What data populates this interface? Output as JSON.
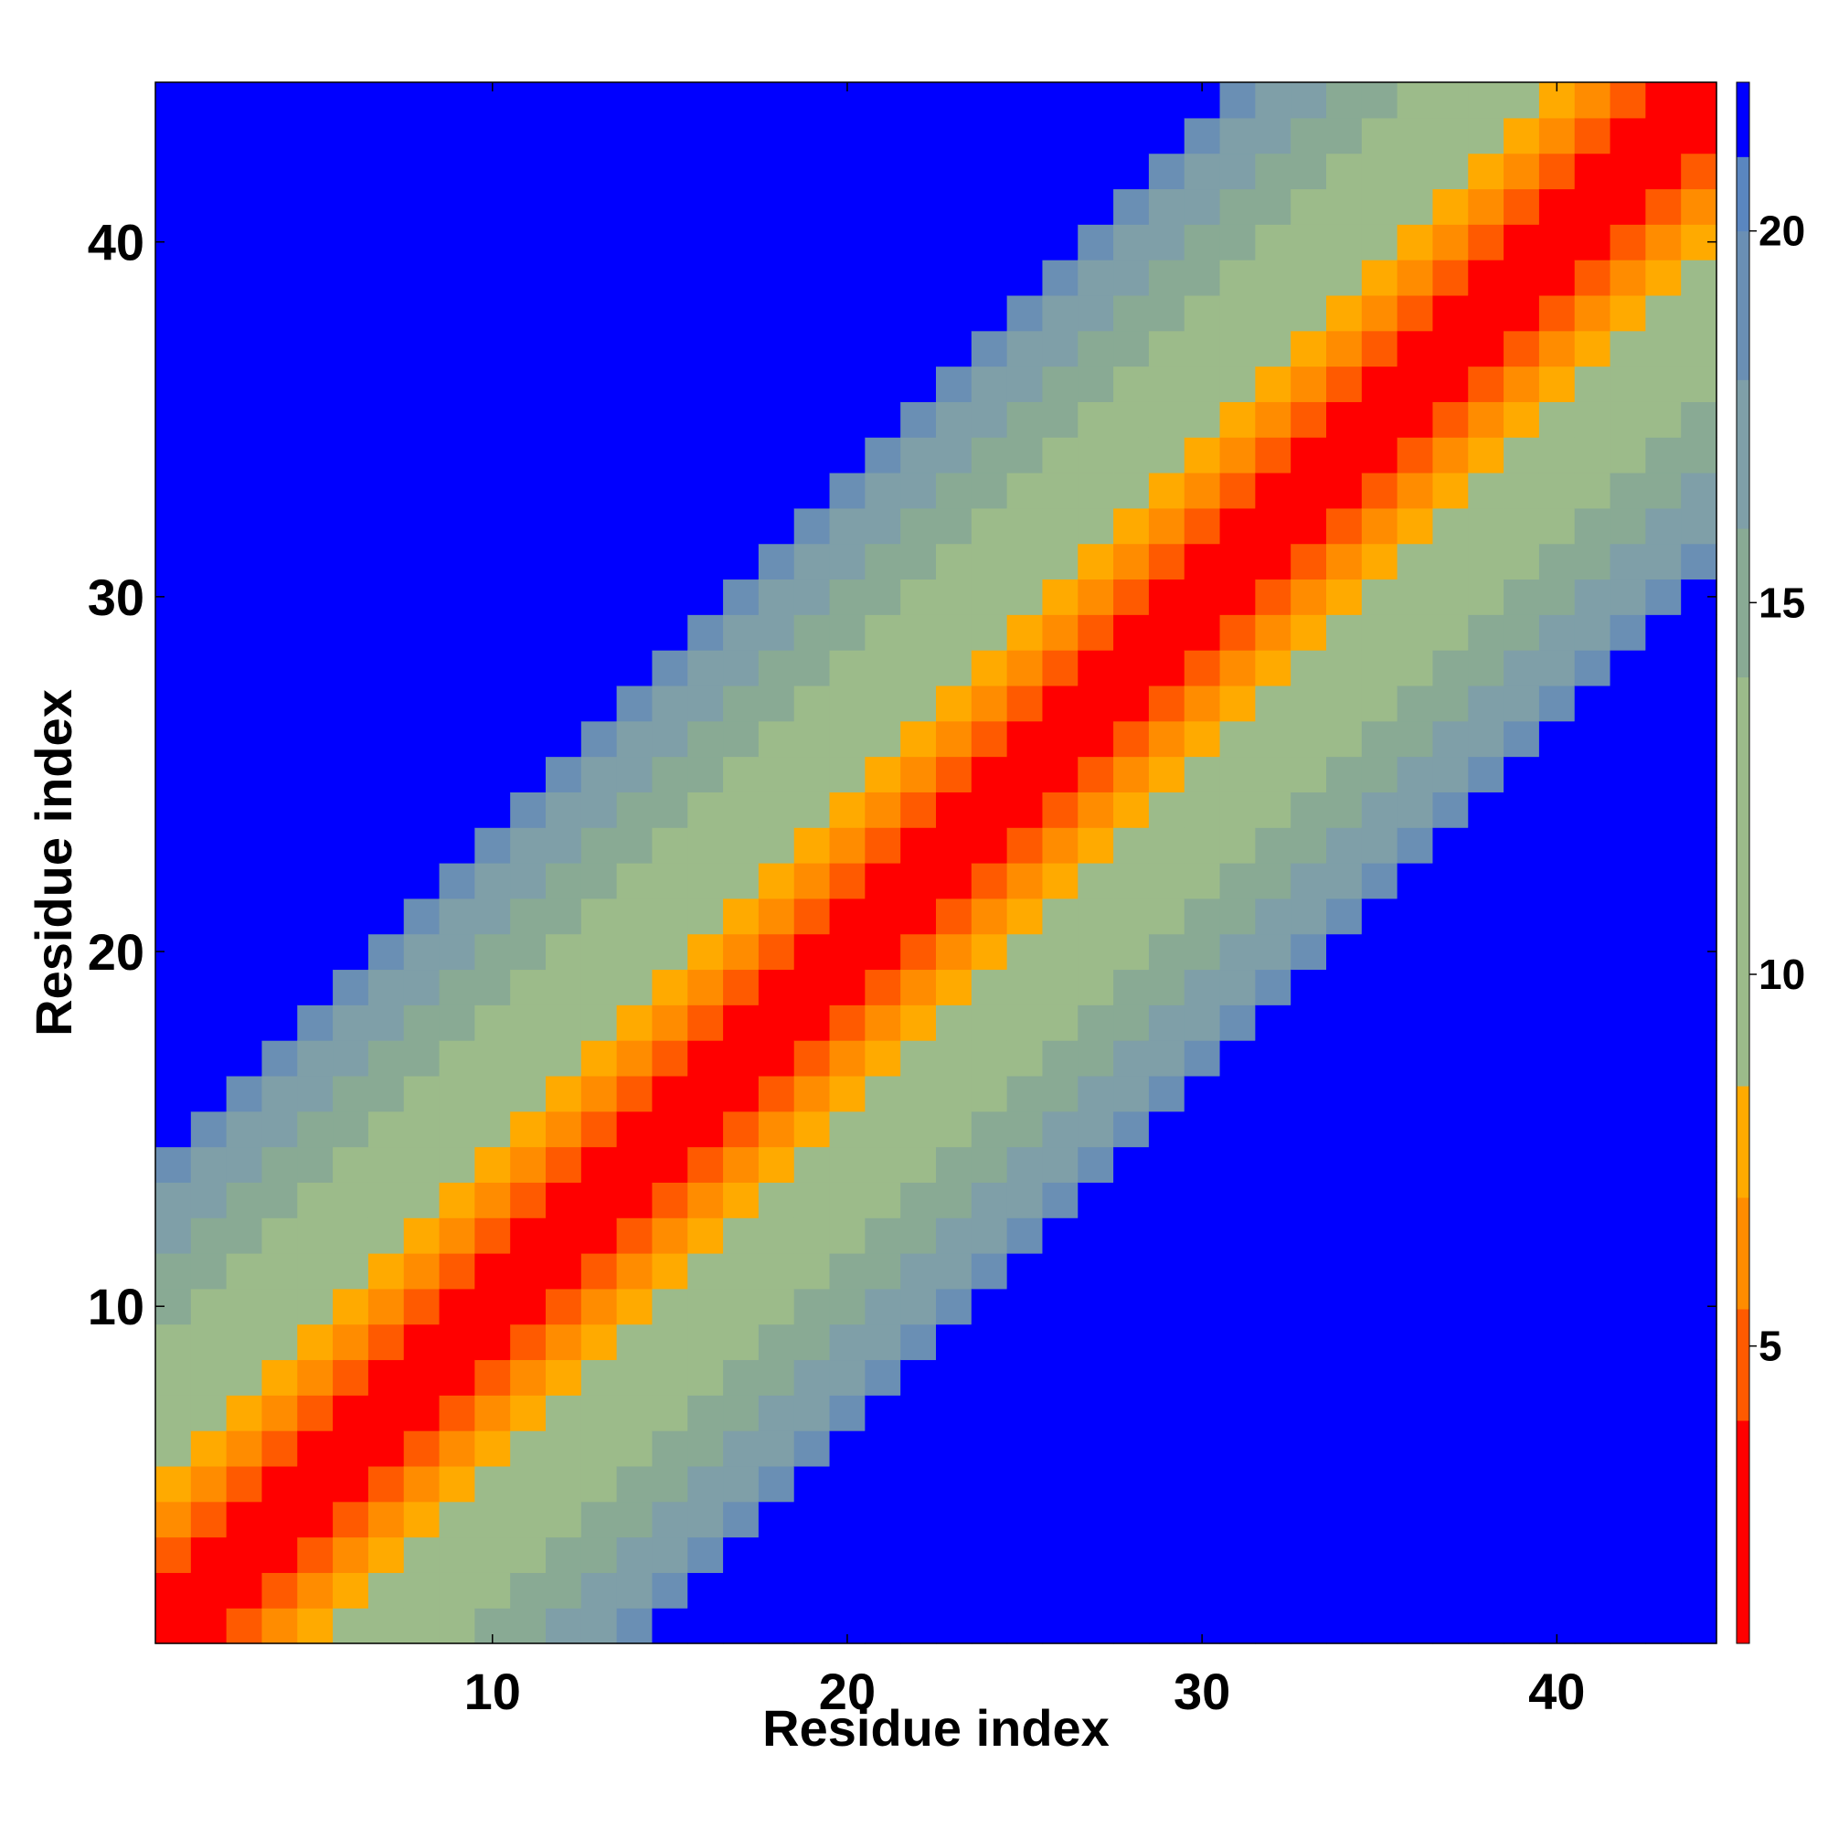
{
  "chart_data": {
    "type": "heatmap",
    "title": "",
    "xlabel": "Residue index",
    "ylabel": "Residue index",
    "n": 44,
    "xlim": [
      0.5,
      44.5
    ],
    "ylim": [
      0.5,
      44.5
    ],
    "x_ticks": [
      10,
      20,
      30,
      40
    ],
    "y_ticks": [
      10,
      20,
      30,
      40
    ],
    "x_tick_labels": [
      "10",
      "20",
      "30",
      "40"
    ],
    "y_tick_labels": [
      "10",
      "20",
      "30",
      "40"
    ],
    "colorbar": {
      "range": [
        1,
        22
      ],
      "ticks": [
        5,
        10,
        15,
        20
      ],
      "tick_labels": [
        "5",
        "10",
        "15",
        "20"
      ],
      "colors": [
        "#ff0000",
        "#ff0000",
        "#ff5a00",
        "#ff8c00",
        "#ffaa00",
        "#9cbb8a",
        "#9cbb8a",
        "#89aa94",
        "#7f9fa8",
        "#6a8fb4",
        "#5a86c0",
        "#0000ff"
      ],
      "bounds": [
        1,
        2.5,
        4,
        5.5,
        7,
        8.5,
        11.5,
        14,
        16,
        18,
        20,
        21,
        22
      ]
    },
    "note_distance_values": "Symmetric residue-residue distance map; cell value d(i,j) with |i-j|<=1 about 1-2, |i-j|=2 about 5, |i-j|=3 about 6, |i-j|=4 about 7, |i-j| 5-8 about 10, 9-10 about 14, 11-13 about 16-18, larger separations above 21 (saturated blue)."
  }
}
